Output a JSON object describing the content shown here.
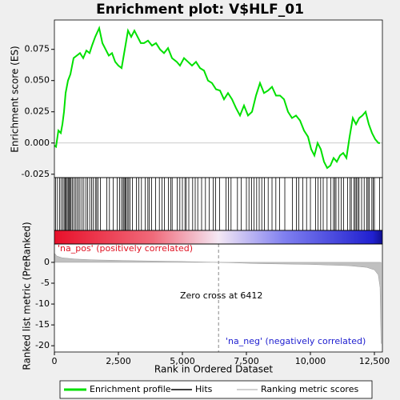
{
  "chart_data": {
    "type": "line",
    "title": "Enrichment plot: V$HLF_01",
    "x_label": "Rank in Ordered Dataset",
    "y_label": "Enrichment score (ES)",
    "y2_label": "Ranked list metric (PreRanked)",
    "xlim": [
      0,
      12812
    ],
    "ylim": [
      -0.0277,
      0.0985
    ],
    "y2lim": [
      -21.5,
      4.4
    ],
    "xticks": [
      0,
      {
        "value": 2500,
        "label": "2,500"
      },
      {
        "value": 5000,
        "label": "5,000"
      },
      {
        "value": 7500,
        "label": "7,500"
      },
      {
        "value": 10000,
        "label": "10,000"
      },
      {
        "value": 12500,
        "label": "12,500"
      }
    ],
    "yticks": [
      {
        "value": -0.025,
        "label": "-0.025"
      },
      {
        "value": 0,
        "label": "0.000"
      },
      {
        "value": 0.025,
        "label": "0.025"
      },
      {
        "value": 0.05,
        "label": "0.050"
      },
      {
        "value": 0.075,
        "label": "0.075"
      }
    ],
    "y2ticks": [
      0,
      -5,
      -10,
      -15,
      -20
    ],
    "series": [
      {
        "name": "Enrichment profile",
        "color": "#00e000",
        "x": [
          0,
          63,
          156,
          250,
          313,
          375,
          438,
          531,
          625,
          750,
          875,
          1000,
          1125,
          1250,
          1375,
          1469,
          1594,
          1750,
          1875,
          2000,
          2125,
          2250,
          2375,
          2500,
          2625,
          2750,
          2875,
          3000,
          3125,
          3250,
          3375,
          3500,
          3656,
          3813,
          3969,
          4125,
          4281,
          4438,
          4594,
          4781,
          4906,
          5063,
          5219,
          5375,
          5531,
          5688,
          5844,
          6000,
          6156,
          6313,
          6469,
          6625,
          6781,
          6938,
          7094,
          7250,
          7406,
          7563,
          7719,
          7875,
          8031,
          8188,
          8344,
          8500,
          8656,
          8813,
          8969,
          9125,
          9281,
          9438,
          9594,
          9750,
          9906,
          10031,
          10156,
          10281,
          10406,
          10531,
          10656,
          10781,
          10906,
          11031,
          11156,
          11281,
          11406,
          11531,
          11656,
          11781,
          11906,
          12031,
          12156,
          12281,
          12406,
          12531,
          12656,
          12719
        ],
        "values": [
          -0.002,
          -0.003,
          0.01,
          0.008,
          0.015,
          0.025,
          0.04,
          0.05,
          0.055,
          0.068,
          0.07,
          0.072,
          0.068,
          0.074,
          0.072,
          0.078,
          0.085,
          0.092,
          0.08,
          0.075,
          0.07,
          0.072,
          0.065,
          0.062,
          0.06,
          0.075,
          0.09,
          0.085,
          0.09,
          0.085,
          0.08,
          0.08,
          0.082,
          0.078,
          0.08,
          0.075,
          0.072,
          0.076,
          0.068,
          0.065,
          0.062,
          0.068,
          0.065,
          0.062,
          0.065,
          0.06,
          0.058,
          0.05,
          0.048,
          0.043,
          0.042,
          0.035,
          0.04,
          0.035,
          0.028,
          0.022,
          0.03,
          0.022,
          0.025,
          0.038,
          0.048,
          0.04,
          0.042,
          0.045,
          0.038,
          0.038,
          0.035,
          0.025,
          0.02,
          0.022,
          0.018,
          0.01,
          0.005,
          -0.005,
          -0.01,
          0.0,
          -0.005,
          -0.015,
          -0.02,
          -0.018,
          -0.012,
          -0.015,
          -0.01,
          -0.008,
          -0.012,
          0.005,
          0.02,
          0.015,
          0.02,
          0.022,
          0.025,
          0.015,
          0.008,
          0.003,
          0.0,
          0.0
        ]
      }
    ],
    "hits": {
      "name": "Hits",
      "color": "#000000",
      "x": [
        50,
        120,
        200,
        260,
        330,
        380,
        420,
        460,
        500,
        540,
        580,
        620,
        650,
        700,
        760,
        820,
        880,
        940,
        1000,
        1080,
        1150,
        1230,
        1300,
        1380,
        1450,
        1520,
        1600,
        1650,
        1700,
        1800,
        2050,
        2150,
        2300,
        2450,
        2550,
        2620,
        2680,
        2720,
        2760,
        2800,
        2850,
        2900,
        2950,
        3050,
        3200,
        3300,
        3400,
        3550,
        3650,
        3700,
        3800,
        3950,
        4100,
        4200,
        4300,
        4450,
        4550,
        4600,
        4800,
        4900,
        5000,
        5100,
        5150,
        5250,
        5400,
        5500,
        5600,
        5750,
        5900,
        6050,
        6200,
        6300,
        6450,
        6700,
        6800,
        6900,
        7150,
        7300,
        7500,
        7600,
        7700,
        7800,
        7900,
        8000,
        8100,
        8200,
        8350,
        8500,
        8650,
        8800,
        9000,
        9300,
        9450,
        9550,
        9700,
        9850,
        10000,
        10200,
        10300,
        10400,
        10500,
        10650,
        10800,
        10900,
        10950,
        11000,
        11100,
        11200,
        11300,
        11450,
        11550,
        11600,
        11700,
        11750,
        11800,
        11850,
        11900,
        12000,
        12100,
        12200,
        12250,
        12300,
        12400,
        12450,
        12500,
        12700
      ]
    },
    "metric": {
      "name": "Ranking metric scores",
      "color": "#c0c0c0",
      "x": [
        0,
        100,
        300,
        800,
        1500,
        3000,
        5000,
        6412,
        8000,
        10000,
        11500,
        12200,
        12500,
        12650,
        12720,
        12760
      ],
      "values": [
        2.2,
        1.5,
        1.1,
        0.8,
        0.6,
        0.4,
        0.2,
        0,
        -0.3,
        -0.5,
        -0.8,
        -1.2,
        -1.8,
        -3,
        -6,
        -19.5
      ]
    },
    "zero_cross": 6412,
    "annotations": {
      "pos": "'na_pos' (positively correlated)",
      "neg": "'na_neg' (negatively correlated)",
      "zero": "Zero cross at 6412"
    }
  }
}
